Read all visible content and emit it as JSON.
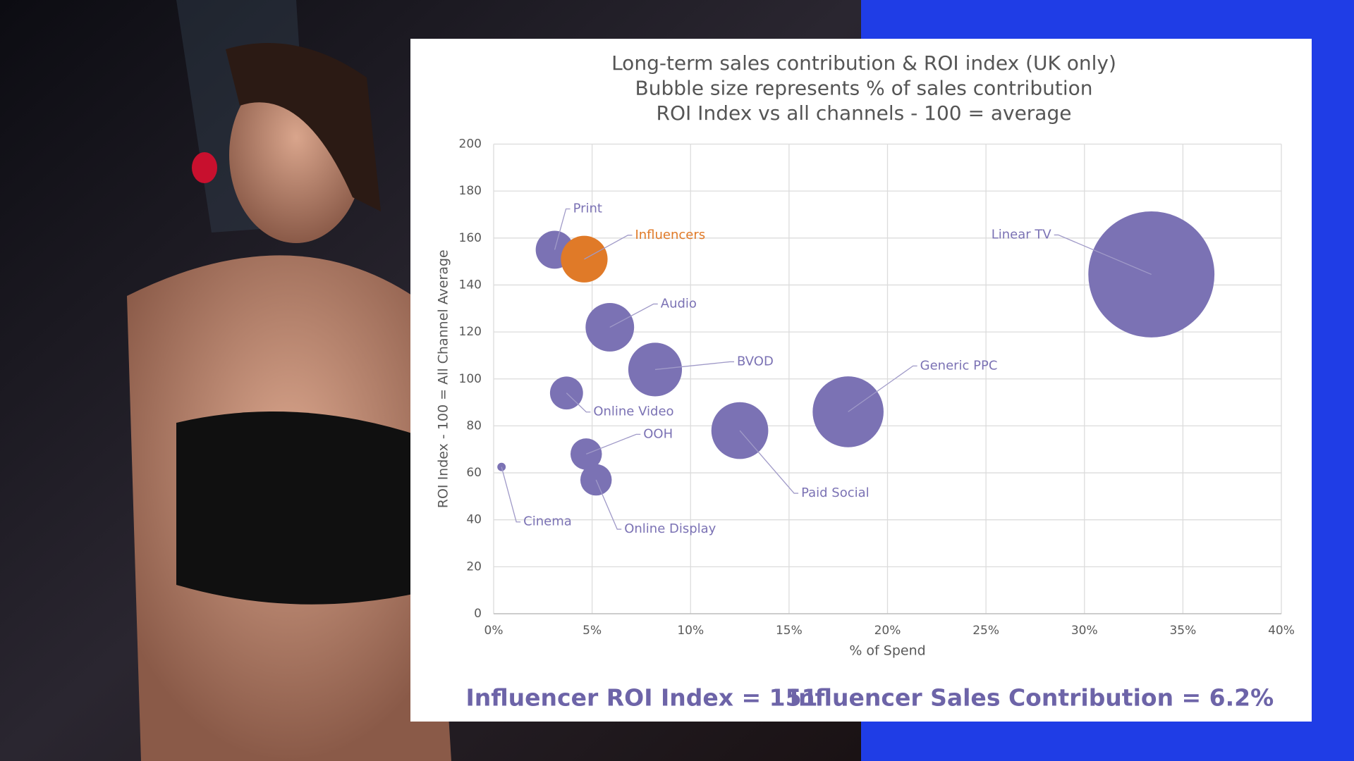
{
  "chart_data": {
    "type": "bubble",
    "title": [
      "Long-term sales contribution & ROI index (UK only)",
      "Bubble size represents % of sales contribution",
      "ROI Index vs all channels - 100 = average"
    ],
    "x_label": "% of Spend",
    "y_label": "ROI Index - 100 = All Channel Average",
    "xlim": [
      0,
      40
    ],
    "xticks": [
      {
        "value": 0,
        "label": "0%"
      },
      {
        "value": 5,
        "label": "5%"
      },
      {
        "value": 10,
        "label": "10%"
      },
      {
        "value": 15,
        "label": "15%"
      },
      {
        "value": 20,
        "label": "20%"
      },
      {
        "value": 25,
        "label": "25%"
      },
      {
        "value": 30,
        "label": "30%"
      },
      {
        "value": 35,
        "label": "35%"
      },
      {
        "value": 40,
        "label": "40%"
      }
    ],
    "ylim": [
      0,
      200
    ],
    "yticks": [
      0,
      20,
      40,
      60,
      80,
      100,
      120,
      140,
      160,
      180,
      200
    ],
    "grid": true,
    "points": [
      {
        "label": "Print",
        "x": 3.1,
        "y": 155,
        "size": 4.1,
        "color": "#7b72b4"
      },
      {
        "label": "Influencers",
        "x": 4.6,
        "y": 151,
        "size": 6.2,
        "color": "#e07a28"
      },
      {
        "label": "Audio",
        "x": 5.9,
        "y": 122,
        "size": 6.7,
        "color": "#7b72b4"
      },
      {
        "label": "BVOD",
        "x": 8.2,
        "y": 104,
        "size": 8.2,
        "color": "#7b72b4"
      },
      {
        "label": "Online Video",
        "x": 3.7,
        "y": 94,
        "size": 3.1,
        "color": "#7b72b4"
      },
      {
        "label": "OOH",
        "x": 4.7,
        "y": 68,
        "size": 2.8,
        "color": "#7b72b4"
      },
      {
        "label": "Online Display",
        "x": 5.2,
        "y": 57,
        "size": 2.8,
        "color": "#7b72b4"
      },
      {
        "label": "Cinema",
        "x": 0.4,
        "y": 62.5,
        "size": 0.2,
        "color": "#7b72b4"
      },
      {
        "label": "Paid Social",
        "x": 12.5,
        "y": 78,
        "size": 9.2,
        "color": "#7b72b4"
      },
      {
        "label": "Generic PPC",
        "x": 18.0,
        "y": 86,
        "size": 14.3,
        "color": "#7b72b4"
      },
      {
        "label": "Linear TV",
        "x": 33.4,
        "y": 144.5,
        "size": 45.2,
        "color": "#7b72b4"
      }
    ],
    "footer": [
      "Influencer ROI Index = 151",
      "Influencer Sales Contribution = 6.2%"
    ]
  }
}
